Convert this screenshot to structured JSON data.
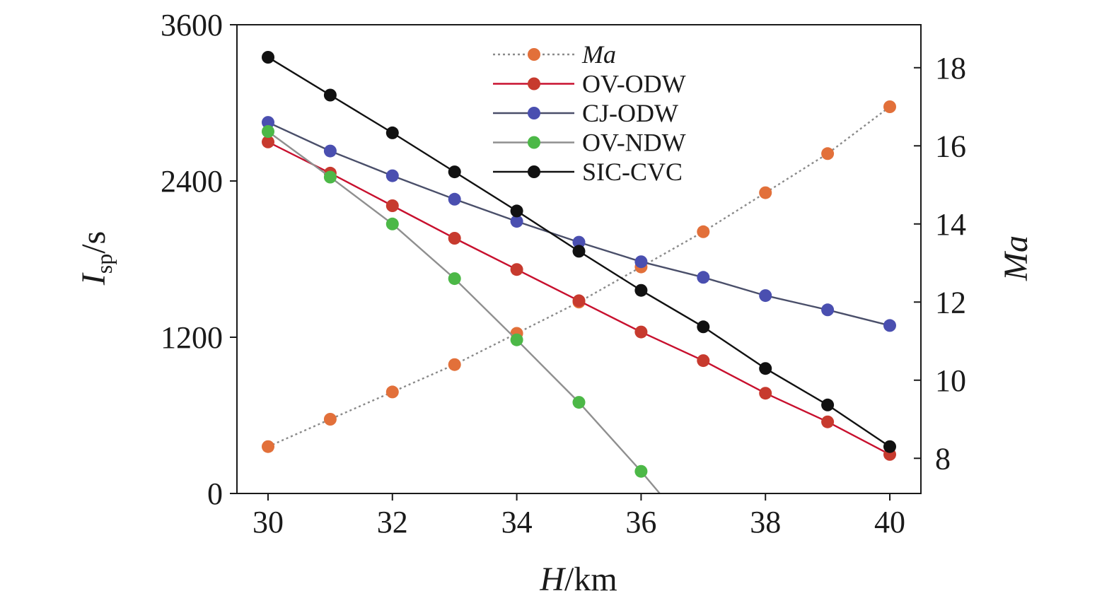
{
  "chart_data": {
    "type": "line",
    "x": [
      30,
      31,
      32,
      33,
      34,
      35,
      36,
      37,
      38,
      39,
      40
    ],
    "xlim": [
      29.5,
      40.5
    ],
    "ylim": [
      0,
      3600
    ],
    "y2lim": [
      7.1,
      19.1
    ],
    "xticks": [
      30,
      32,
      34,
      36,
      38,
      40
    ],
    "yticks": [
      0,
      1200,
      2400,
      3600
    ],
    "y2ticks": [
      8,
      10,
      12,
      14,
      16,
      18
    ],
    "xlabel": {
      "main": "H",
      "rest": "/km"
    },
    "ylabel": {
      "main": "I",
      "sub": "sp",
      "rest": "/s"
    },
    "y2label": "Ma",
    "legend_position": "top-center",
    "grid": false,
    "series": [
      {
        "name": "Ma",
        "axis": "right",
        "style": "dotted",
        "italic": true,
        "line_color": "#8a8a8a",
        "marker_color": "#e2703a",
        "x": [
          30,
          31,
          32,
          33,
          34,
          35,
          36,
          37,
          38,
          39,
          40
        ],
        "values": [
          8.3,
          9.0,
          9.7,
          10.4,
          11.2,
          12.0,
          12.9,
          13.8,
          14.8,
          15.8,
          17.0
        ]
      },
      {
        "name": "OV-ODW",
        "axis": "left",
        "style": "solid",
        "line_color": "#c8102e",
        "marker_color": "#c73a2e",
        "x": [
          30,
          31,
          32,
          33,
          34,
          35,
          36,
          37,
          38,
          39,
          40
        ],
        "values": [
          2700,
          2460,
          2210,
          1960,
          1720,
          1480,
          1240,
          1020,
          770,
          550,
          300
        ]
      },
      {
        "name": "CJ-ODW",
        "axis": "left",
        "style": "solid",
        "line_color": "#4a4f6a",
        "marker_color": "#4a4fb0",
        "x": [
          30,
          31,
          32,
          33,
          34,
          35,
          36,
          37,
          38,
          39,
          40
        ],
        "values": [
          2850,
          2630,
          2440,
          2260,
          2090,
          1930,
          1780,
          1660,
          1520,
          1410,
          1290
        ]
      },
      {
        "name": "OV-NDW",
        "axis": "left",
        "style": "solid",
        "line_color": "#8f8f8f",
        "marker_color": "#4cb847",
        "x": [
          30,
          31,
          32,
          33,
          34,
          35,
          36,
          36.3
        ],
        "markers": [
          true,
          true,
          true,
          true,
          true,
          true,
          true,
          false
        ],
        "values": [
          2780,
          2430,
          2070,
          1650,
          1180,
          700,
          170,
          0
        ]
      },
      {
        "name": "SIC-CVC",
        "axis": "left",
        "style": "solid",
        "line_color": "#111111",
        "marker_color": "#111111",
        "x": [
          30,
          31,
          32,
          33,
          34,
          35,
          36,
          37,
          38,
          39,
          40
        ],
        "values": [
          3350,
          3060,
          2770,
          2470,
          2170,
          1860,
          1560,
          1280,
          960,
          680,
          360
        ]
      }
    ]
  }
}
